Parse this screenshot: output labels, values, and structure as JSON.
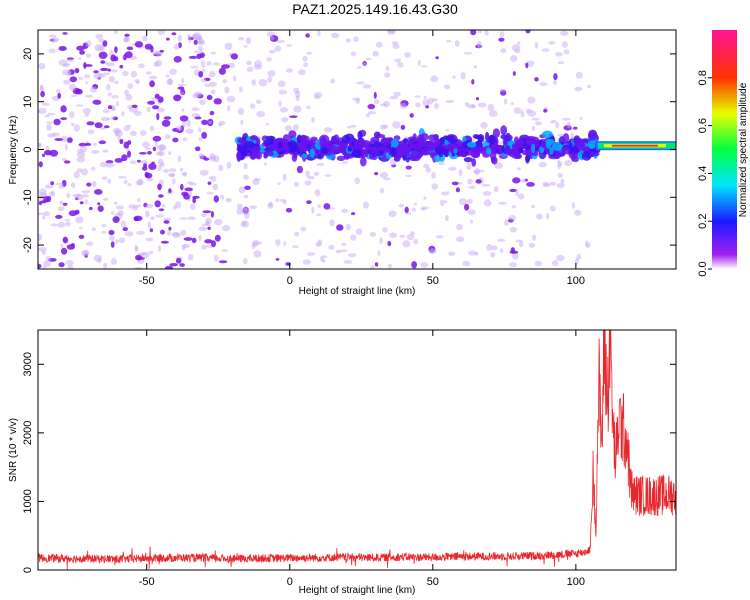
{
  "title": "PAZ1.2025.149.16.43.G30",
  "colors": {
    "density_fill": "#8a2be2",
    "snr_line": "#e8282d",
    "frame": "#000000"
  },
  "chart_data": [
    {
      "type": "heatmap",
      "title": "",
      "xlabel": "Height of straight line (km)",
      "ylabel": "Frequency (Hz)",
      "xlim": [
        -88,
        135
      ],
      "ylim": [
        -25,
        25
      ],
      "xticks": [
        -50,
        0,
        50,
        100
      ],
      "yticks": [
        -20,
        -10,
        0,
        10,
        20
      ],
      "grid": false,
      "colorbar": {
        "label": "Normalized spectral amplitude",
        "range": [
          0.0,
          1.0
        ],
        "ticks": [
          0.0,
          0.2,
          0.4,
          0.6,
          0.8
        ],
        "colormap": "rainbow (white-purple-blue-cyan-green-yellow-red-magenta)",
        "placement": "right"
      },
      "features": [
        {
          "description": "scattered noise speckle",
          "x_range": [
            -88,
            105
          ],
          "freq_range": [
            -25,
            25
          ],
          "amplitude": 0.1
        },
        {
          "description": "carrier band",
          "x_range": [
            -18,
            107
          ],
          "freq_center": 0.5,
          "freq_width": 8,
          "amplitude": 0.2
        },
        {
          "description": "strong line",
          "x_range": [
            107,
            135
          ],
          "freq": 0.8,
          "amplitude": 0.9
        }
      ]
    },
    {
      "type": "line",
      "title": "",
      "xlabel": "Height of straight line (km)",
      "ylabel": "SNR (10 * v/v)",
      "xlim": [
        -88,
        135
      ],
      "ylim": [
        0,
        3500
      ],
      "xticks": [
        -50,
        0,
        50,
        100
      ],
      "yticks": [
        0,
        1000,
        2000,
        3000
      ],
      "grid": false,
      "series": [
        {
          "color": "#e8282d",
          "x": [
            -88,
            -80,
            -70,
            -60,
            -50,
            -40,
            -30,
            -20,
            -10,
            0,
            10,
            20,
            30,
            40,
            50,
            60,
            70,
            80,
            90,
            100,
            103,
            105,
            106,
            107,
            108,
            109,
            110,
            111,
            112,
            113,
            114,
            115,
            116,
            117,
            118,
            119,
            120,
            125,
            130,
            135
          ],
          "y": [
            175,
            170,
            165,
            160,
            170,
            180,
            175,
            165,
            170,
            175,
            180,
            185,
            180,
            190,
            185,
            195,
            200,
            200,
            215,
            240,
            260,
            300,
            1400,
            600,
            2800,
            1800,
            3400,
            2400,
            3500,
            2000,
            1600,
            2200,
            2100,
            2000,
            1850,
            1250,
            1100,
            1080,
            1090,
            1100
          ]
        }
      ]
    }
  ]
}
